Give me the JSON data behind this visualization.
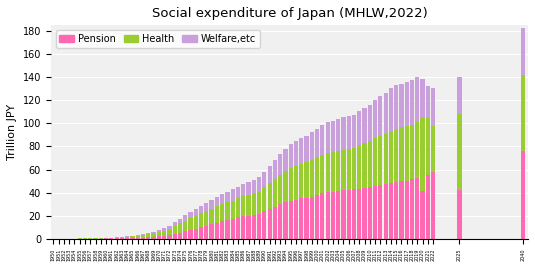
{
  "title": "Social expenditure of Japan (MHLW,2022)",
  "ylabel": "Trillion JPY",
  "colors": {
    "pension": "#FF69B4",
    "health": "#9ACD32",
    "welfare": "#C9A0DC"
  },
  "years": [
    1950,
    1951,
    1952,
    1953,
    1954,
    1955,
    1956,
    1957,
    1958,
    1959,
    1960,
    1961,
    1962,
    1963,
    1964,
    1965,
    1966,
    1967,
    1968,
    1969,
    1970,
    1971,
    1972,
    1973,
    1974,
    1975,
    1976,
    1977,
    1978,
    1979,
    1980,
    1981,
    1982,
    1983,
    1984,
    1985,
    1986,
    1987,
    1988,
    1989,
    1990,
    1991,
    1992,
    1993,
    1994,
    1995,
    1996,
    1997,
    1998,
    1999,
    2000,
    2001,
    2002,
    2003,
    2004,
    2005,
    2006,
    2007,
    2008,
    2009,
    2010,
    2011,
    2012,
    2013,
    2014,
    2015,
    2016,
    2017,
    2018,
    2019,
    2020,
    2021,
    2022
  ],
  "pension": [
    0.1,
    0.1,
    0.1,
    0.1,
    0.1,
    0.1,
    0.1,
    0.2,
    0.2,
    0.2,
    0.3,
    0.3,
    0.4,
    0.5,
    0.6,
    0.7,
    0.9,
    1.1,
    1.4,
    1.7,
    2.1,
    2.6,
    3.3,
    4.2,
    5.3,
    6.5,
    7.7,
    8.9,
    10.0,
    11.2,
    12.5,
    14.0,
    15.2,
    16.3,
    17.4,
    18.5,
    19.4,
    20.1,
    21.0,
    21.8,
    24.0,
    26.0,
    28.0,
    30.0,
    31.5,
    33.0,
    34.0,
    35.0,
    35.5,
    36.5,
    38.0,
    39.5,
    40.5,
    41.0,
    41.5,
    42.0,
    42.5,
    43.0,
    43.5,
    44.0,
    44.5,
    45.5,
    46.5,
    47.5,
    48.5,
    49.5,
    50.0,
    50.5,
    51.5,
    53.0,
    41.5,
    55.5,
    57.5
  ],
  "health": [
    0.1,
    0.1,
    0.1,
    0.1,
    0.1,
    0.2,
    0.2,
    0.2,
    0.3,
    0.3,
    0.4,
    0.5,
    0.7,
    0.9,
    1.1,
    1.4,
    1.7,
    2.1,
    2.6,
    3.1,
    3.7,
    4.5,
    5.5,
    6.8,
    8.0,
    9.0,
    10.0,
    11.0,
    12.0,
    12.8,
    13.5,
    14.2,
    14.8,
    15.3,
    15.8,
    16.5,
    17.3,
    17.8,
    18.4,
    19.2,
    20.8,
    22.5,
    24.0,
    25.5,
    27.0,
    28.5,
    29.5,
    30.0,
    30.8,
    31.8,
    32.5,
    33.3,
    33.8,
    34.2,
    34.8,
    35.2,
    35.5,
    36.0,
    38.0,
    39.0,
    40.0,
    41.5,
    43.0,
    43.5,
    45.0,
    46.0,
    46.5,
    47.0,
    47.5,
    48.5,
    64.0,
    49.5,
    40.0
  ],
  "welfare": [
    0.0,
    0.0,
    0.0,
    0.0,
    0.0,
    0.1,
    0.1,
    0.1,
    0.1,
    0.1,
    0.2,
    0.2,
    0.3,
    0.4,
    0.5,
    0.6,
    0.7,
    0.9,
    1.1,
    1.3,
    1.6,
    2.0,
    2.6,
    3.3,
    4.2,
    5.0,
    5.6,
    6.2,
    6.8,
    7.3,
    7.8,
    8.3,
    8.8,
    9.3,
    9.8,
    10.3,
    10.8,
    11.2,
    11.7,
    12.2,
    13.5,
    15.0,
    16.5,
    18.0,
    19.5,
    20.5,
    21.5,
    22.0,
    23.0,
    24.0,
    25.0,
    26.0,
    26.5,
    27.0,
    27.5,
    28.0,
    28.5,
    28.5,
    29.0,
    30.0,
    31.5,
    33.0,
    34.5,
    35.5,
    37.0,
    37.5,
    38.0,
    38.0,
    38.5,
    39.0,
    33.0,
    27.0,
    33.0
  ],
  "proj_labels": [
    "2025",
    "2040"
  ],
  "proj_pension": [
    42.0,
    76.0
  ],
  "proj_health": [
    66.0,
    66.0
  ],
  "proj_welfare": [
    32.0,
    41.0
  ],
  "ylim": [
    0,
    185
  ],
  "yticks": [
    0,
    20,
    40,
    60,
    80,
    100,
    120,
    140,
    160,
    180
  ],
  "bg_color": "#f0f0f0",
  "grid_color": "white"
}
